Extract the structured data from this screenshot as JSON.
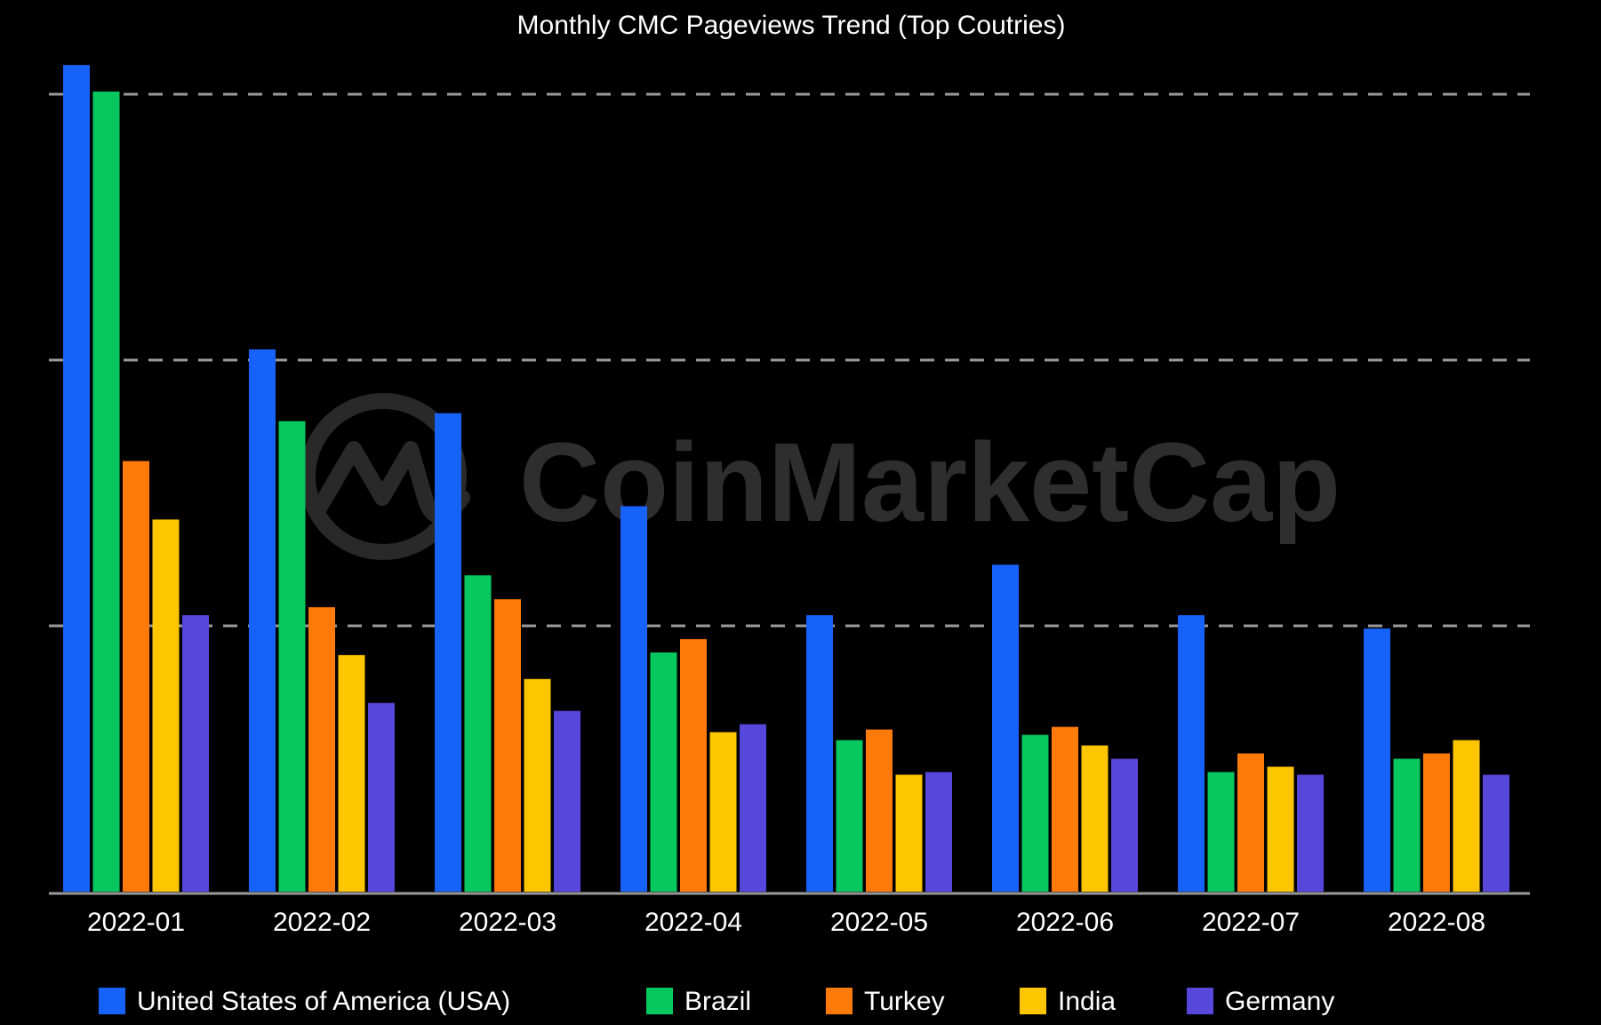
{
  "watermark": {
    "text": "CoinMarketCap",
    "icon": "coinmarketcap-logo-icon",
    "color": "#2e2e2e"
  },
  "chart_data": {
    "type": "bar",
    "title": "Monthly CMC Pageviews Trend (Top Coutries)",
    "xlabel": "",
    "ylabel": "",
    "ylim": [
      0,
      3.0
    ],
    "grid": true,
    "y_gridlines": [
      1,
      2,
      3
    ],
    "y_ticks_labeled": false,
    "legend_position": "bottom",
    "categories": [
      "2022-01",
      "2022-02",
      "2022-03",
      "2022-04",
      "2022-05",
      "2022-06",
      "2022-07",
      "2022-08"
    ],
    "series": [
      {
        "name": "United States of America (USA)",
        "color": "#1762fa",
        "values": [
          3.11,
          2.04,
          1.8,
          1.45,
          1.04,
          1.23,
          1.04,
          0.99
        ]
      },
      {
        "name": "Brazil",
        "color": "#06c85e",
        "values": [
          3.01,
          1.77,
          1.19,
          0.9,
          0.57,
          0.59,
          0.45,
          0.5
        ]
      },
      {
        "name": "Turkey",
        "color": "#fe7a0b",
        "values": [
          1.62,
          1.07,
          1.1,
          0.95,
          0.61,
          0.62,
          0.52,
          0.52
        ]
      },
      {
        "name": "India",
        "color": "#fec501",
        "values": [
          1.4,
          0.89,
          0.8,
          0.6,
          0.44,
          0.55,
          0.47,
          0.57
        ]
      },
      {
        "name": "Germany",
        "color": "#5747db",
        "values": [
          1.04,
          0.71,
          0.68,
          0.63,
          0.45,
          0.5,
          0.44,
          0.44
        ]
      }
    ]
  }
}
